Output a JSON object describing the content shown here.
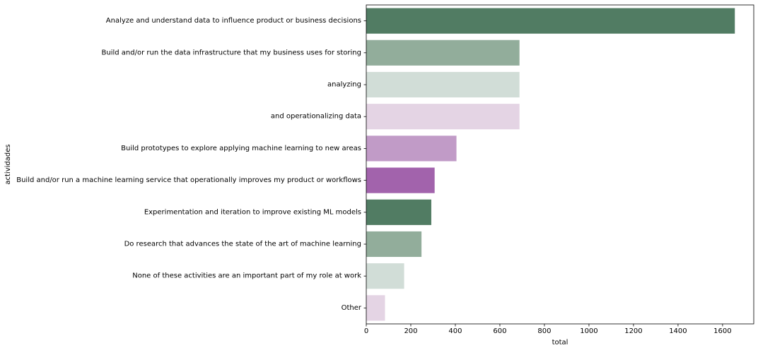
{
  "chart_data": {
    "type": "bar",
    "orientation": "horizontal",
    "categories": [
      "Analyze and understand data to influence product or business decisions",
      "Build and/or run the data infrastructure that my business uses for storing",
      "analyzing",
      "and operationalizing data",
      "Build prototypes to explore applying machine learning to new areas",
      "Build and/or run a machine learning service that operationally improves my product or workflows",
      "Experimentation and iteration to improve existing ML models",
      "Do research that advances the state of the art of machine learning",
      "None of these activities are an important part of my role at work",
      "Other"
    ],
    "values": [
      1655,
      688,
      688,
      688,
      405,
      307,
      292,
      248,
      170,
      84
    ],
    "colors": [
      "#517c63",
      "#92ad9b",
      "#d1ddd7",
      "#e4d4e4",
      "#c19bc7",
      "#a263ac",
      "#517c63",
      "#92ad9b",
      "#d1ddd7",
      "#e4d4e4"
    ],
    "xlabel": "total",
    "ylabel": "actividades",
    "xlim": [
      0,
      1740
    ],
    "xticks": [
      0,
      200,
      400,
      600,
      800,
      1000,
      1200,
      1400,
      1600
    ],
    "grid": false,
    "legend": "none"
  }
}
